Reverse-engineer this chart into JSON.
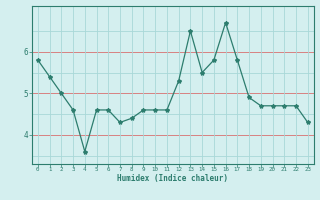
{
  "xlabel": "Humidex (Indice chaleur)",
  "x": [
    0,
    1,
    2,
    3,
    4,
    5,
    6,
    7,
    8,
    9,
    10,
    11,
    12,
    13,
    14,
    15,
    16,
    17,
    18,
    19,
    20,
    21,
    22,
    23
  ],
  "y": [
    5.8,
    5.4,
    5.0,
    4.6,
    3.6,
    4.6,
    4.6,
    4.3,
    4.4,
    4.6,
    4.6,
    4.6,
    5.3,
    6.5,
    5.5,
    5.8,
    6.7,
    5.8,
    4.9,
    4.7,
    4.7,
    4.7,
    4.7,
    4.3
  ],
  "line_color": "#2d7d6e",
  "marker": "*",
  "marker_size": 3,
  "background_color": "#d4efef",
  "grid_color_teal": "#a8d8d8",
  "grid_color_red": "#d87070",
  "axis_color": "#2d7d6e",
  "tick_color": "#2d7d6e",
  "label_color": "#2d7d6e",
  "ylim": [
    3.3,
    7.1
  ],
  "yticks": [
    4,
    5,
    6
  ],
  "hlines_red": [
    4,
    5,
    6
  ],
  "hlines_teal_minor": [
    3.5,
    4.5,
    5.5,
    6.5
  ]
}
